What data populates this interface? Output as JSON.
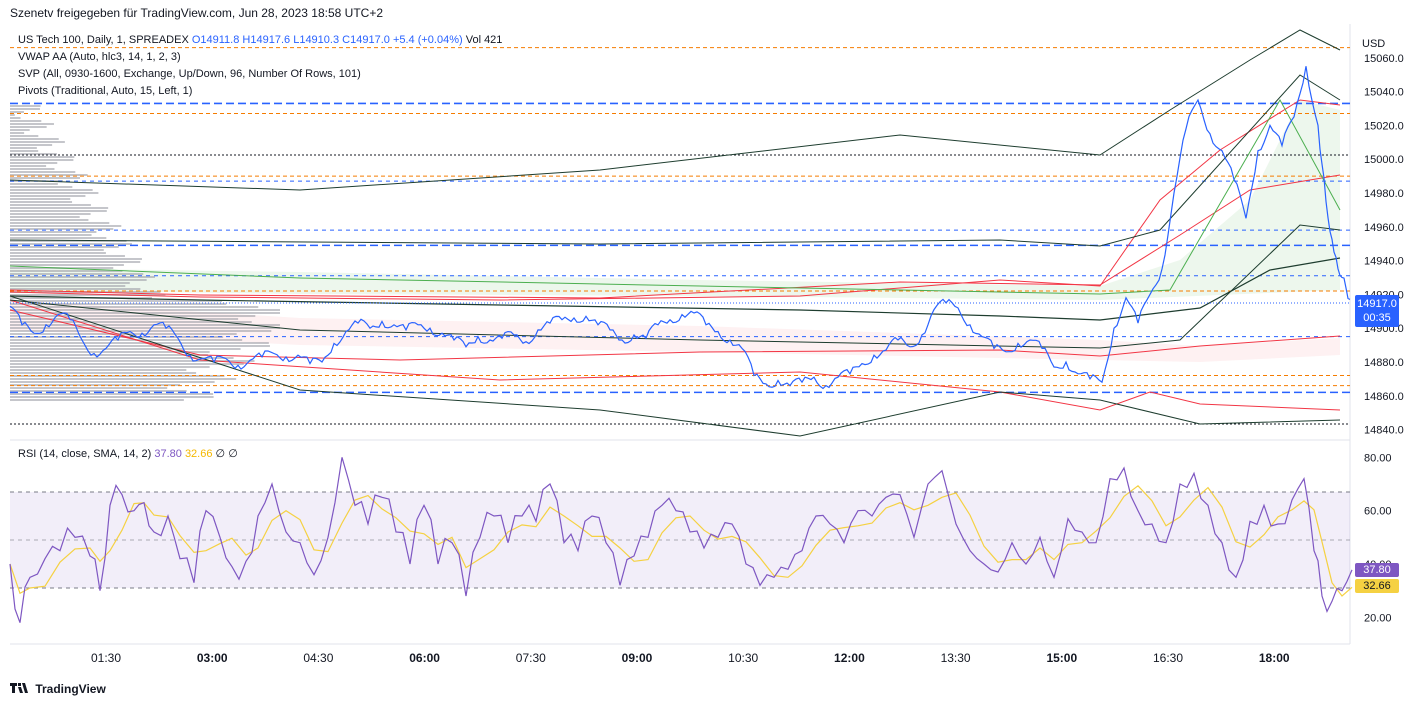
{
  "header": {
    "published": "Szenetv freigegeben für TradingView.com, Jun 28, 2023 18:58 UTC+2"
  },
  "legends": {
    "symbol_prefix": "US Tech 100, Daily, 1, SPREADEX",
    "open": "O14911.8",
    "high": "H14917.6",
    "low": "L14910.3",
    "close": "C14917.0",
    "change": "+5.4 (+0.04%)",
    "vol": "Vol 421",
    "vwap": "VWAP AA (Auto, hlc3, 14, 1, 2, 3)",
    "svp": "SVP (All, 0930-1600, Exchange, Up/Down, 96, Number Of Rows, 101)",
    "pivots": "Pivots (Traditional, Auto, 15, Left, 1)",
    "rsi_prefix": "RSI (14, close, SMA, 14, 2)",
    "rsi_value": "37.80",
    "rsi_sma": "32.66",
    "rsi_na1": "∅",
    "rsi_na2": "∅"
  },
  "axis": {
    "currency": "USD",
    "last_price": "14917.0",
    "countdown": "00:35"
  },
  "footer": {
    "brand": "TradingView"
  },
  "colors": {
    "price_line": "#2962ff",
    "rsi_line": "#7e57c2",
    "rsi_sma": "#f5d142",
    "band_red": "#f23645",
    "band_dark": "#1e3d2f",
    "pivot_blue": "#2962ff",
    "pivot_orange": "#f57c00"
  },
  "chart_data": {
    "type": "line",
    "symbol": "US Tech 100",
    "timeframe": "1",
    "x_ticks": [
      "01:30",
      "03:00",
      "04:30",
      "06:00",
      "07:30",
      "09:00",
      "10:30",
      "12:00",
      "13:30",
      "15:00",
      "16:30",
      "18:00"
    ],
    "price_axis": {
      "ticks": [
        "15060.0",
        "15040.0",
        "15020.0",
        "15000.0",
        "14980.0",
        "14960.0",
        "14940.0",
        "14920.0",
        "14900.0",
        "14880.0",
        "14860.0",
        "14840.0"
      ],
      "ylim": [
        14835,
        15080
      ]
    },
    "rsi_axis": {
      "ticks": [
        "80.00",
        "60.00",
        "40.00",
        "20.00"
      ],
      "ylim": [
        10,
        85
      ],
      "upper_band": 70,
      "lower_band": 30
    },
    "pivot_levels_blue": [
      15033,
      14987,
      14958,
      14949,
      14931,
      14895,
      14862
    ],
    "pivot_levels_orange": [
      15066,
      15027,
      14990,
      14922,
      14872,
      14866
    ],
    "price_series": [
      [
        0,
        14913
      ],
      [
        12,
        14902
      ],
      [
        24,
        14897
      ],
      [
        36,
        14902
      ],
      [
        48,
        14908
      ],
      [
        60,
        14905
      ],
      [
        72,
        14893
      ],
      [
        84,
        14885
      ],
      [
        96,
        14888
      ],
      [
        108,
        14893
      ],
      [
        120,
        14898
      ],
      [
        132,
        14897
      ],
      [
        144,
        14902
      ],
      [
        156,
        14900
      ],
      [
        168,
        14894
      ],
      [
        180,
        14884
      ],
      [
        192,
        14882
      ],
      [
        204,
        14880
      ],
      [
        216,
        14882
      ],
      [
        228,
        14878
      ],
      [
        240,
        14881
      ],
      [
        252,
        14883
      ],
      [
        264,
        14885
      ],
      [
        276,
        14883
      ],
      [
        288,
        14884
      ],
      [
        300,
        14879
      ],
      [
        312,
        14880
      ],
      [
        324,
        14891
      ],
      [
        336,
        14898
      ],
      [
        348,
        14903
      ],
      [
        360,
        14900
      ],
      [
        372,
        14904
      ],
      [
        384,
        14902
      ],
      [
        396,
        14899
      ],
      [
        408,
        14902
      ],
      [
        420,
        14900
      ],
      [
        432,
        14897
      ],
      [
        444,
        14893
      ],
      [
        456,
        14889
      ],
      [
        468,
        14895
      ],
      [
        480,
        14893
      ],
      [
        492,
        14894
      ],
      [
        504,
        14896
      ],
      [
        516,
        14892
      ],
      [
        528,
        14899
      ],
      [
        540,
        14903
      ],
      [
        552,
        14905
      ],
      [
        564,
        14906
      ],
      [
        576,
        14907
      ],
      [
        588,
        14902
      ],
      [
        600,
        14899
      ],
      [
        612,
        14893
      ],
      [
        624,
        14896
      ],
      [
        636,
        14894
      ],
      [
        648,
        14902
      ],
      [
        660,
        14905
      ],
      [
        672,
        14908
      ],
      [
        684,
        14909
      ],
      [
        696,
        14902
      ],
      [
        708,
        14898
      ],
      [
        720,
        14893
      ],
      [
        732,
        14888
      ],
      [
        744,
        14872
      ],
      [
        756,
        14867
      ],
      [
        768,
        14869
      ],
      [
        780,
        14866
      ],
      [
        792,
        14868
      ],
      [
        804,
        14871
      ],
      [
        816,
        14866
      ],
      [
        828,
        14871
      ],
      [
        840,
        14873
      ],
      [
        852,
        14879
      ],
      [
        864,
        14884
      ],
      [
        876,
        14887
      ],
      [
        888,
        14893
      ],
      [
        900,
        14889
      ],
      [
        912,
        14896
      ],
      [
        924,
        14911
      ],
      [
        936,
        14915
      ],
      [
        948,
        14912
      ],
      [
        960,
        14902
      ],
      [
        972,
        14895
      ],
      [
        984,
        14888
      ],
      [
        996,
        14886
      ],
      [
        1008,
        14891
      ],
      [
        1020,
        14893
      ],
      [
        1032,
        14888
      ],
      [
        1044,
        14877
      ],
      [
        1056,
        14880
      ],
      [
        1068,
        14873
      ],
      [
        1080,
        14870
      ],
      [
        1092,
        14868
      ],
      [
        1104,
        14900
      ],
      [
        1116,
        14918
      ],
      [
        1128,
        14903
      ],
      [
        1140,
        14920
      ],
      [
        1152,
        14935
      ],
      [
        1164,
        14980
      ],
      [
        1176,
        15018
      ],
      [
        1188,
        15035
      ],
      [
        1200,
        15015
      ],
      [
        1212,
        15005
      ],
      [
        1224,
        14988
      ],
      [
        1236,
        14965
      ],
      [
        1248,
        15005
      ],
      [
        1260,
        15020
      ],
      [
        1272,
        15008
      ],
      [
        1284,
        15025
      ],
      [
        1296,
        15055
      ],
      [
        1308,
        15020
      ],
      [
        1316,
        14975
      ],
      [
        1324,
        14945
      ],
      [
        1332,
        14930
      ],
      [
        1340,
        14917
      ]
    ],
    "rsi_series": [
      [
        0,
        40
      ],
      [
        10,
        18
      ],
      [
        20,
        35
      ],
      [
        35,
        42
      ],
      [
        50,
        45
      ],
      [
        65,
        50
      ],
      [
        80,
        43
      ],
      [
        90,
        30
      ],
      [
        100,
        62
      ],
      [
        112,
        66
      ],
      [
        124,
        60
      ],
      [
        134,
        63
      ],
      [
        144,
        52
      ],
      [
        158,
        58
      ],
      [
        170,
        42
      ],
      [
        184,
        33
      ],
      [
        196,
        60
      ],
      [
        210,
        50
      ],
      [
        222,
        39
      ],
      [
        236,
        41
      ],
      [
        248,
        58
      ],
      [
        262,
        70
      ],
      [
        276,
        52
      ],
      [
        290,
        48
      ],
      [
        304,
        36
      ],
      [
        318,
        50
      ],
      [
        332,
        80
      ],
      [
        345,
        62
      ],
      [
        358,
        55
      ],
      [
        372,
        65
      ],
      [
        386,
        52
      ],
      [
        400,
        40
      ],
      [
        414,
        62
      ],
      [
        428,
        40
      ],
      [
        442,
        48
      ],
      [
        456,
        28
      ],
      [
        470,
        50
      ],
      [
        484,
        58
      ],
      [
        498,
        48
      ],
      [
        512,
        58
      ],
      [
        526,
        56
      ],
      [
        540,
        70
      ],
      [
        554,
        48
      ],
      [
        568,
        45
      ],
      [
        582,
        58
      ],
      [
        596,
        48
      ],
      [
        610,
        32
      ],
      [
        624,
        43
      ],
      [
        638,
        50
      ],
      [
        652,
        62
      ],
      [
        666,
        60
      ],
      [
        680,
        52
      ],
      [
        694,
        46
      ],
      [
        708,
        50
      ],
      [
        722,
        55
      ],
      [
        736,
        40
      ],
      [
        750,
        32
      ],
      [
        764,
        35
      ],
      [
        778,
        38
      ],
      [
        792,
        45
      ],
      [
        806,
        58
      ],
      [
        820,
        55
      ],
      [
        834,
        48
      ],
      [
        848,
        60
      ],
      [
        862,
        58
      ],
      [
        876,
        65
      ],
      [
        890,
        66
      ],
      [
        904,
        50
      ],
      [
        918,
        70
      ],
      [
        932,
        75
      ],
      [
        946,
        55
      ],
      [
        960,
        45
      ],
      [
        974,
        40
      ],
      [
        988,
        37
      ],
      [
        1002,
        48
      ],
      [
        1016,
        40
      ],
      [
        1030,
        50
      ],
      [
        1044,
        35
      ],
      [
        1058,
        57
      ],
      [
        1072,
        52
      ],
      [
        1086,
        48
      ],
      [
        1100,
        72
      ],
      [
        1114,
        76
      ],
      [
        1128,
        60
      ],
      [
        1142,
        55
      ],
      [
        1156,
        48
      ],
      [
        1170,
        70
      ],
      [
        1184,
        74
      ],
      [
        1198,
        62
      ],
      [
        1212,
        48
      ],
      [
        1226,
        35
      ],
      [
        1240,
        56
      ],
      [
        1254,
        62
      ],
      [
        1268,
        55
      ],
      [
        1282,
        64
      ],
      [
        1294,
        72
      ],
      [
        1304,
        45
      ],
      [
        1312,
        28
      ],
      [
        1322,
        26
      ],
      [
        1332,
        30
      ],
      [
        1342,
        37.8
      ]
    ]
  }
}
